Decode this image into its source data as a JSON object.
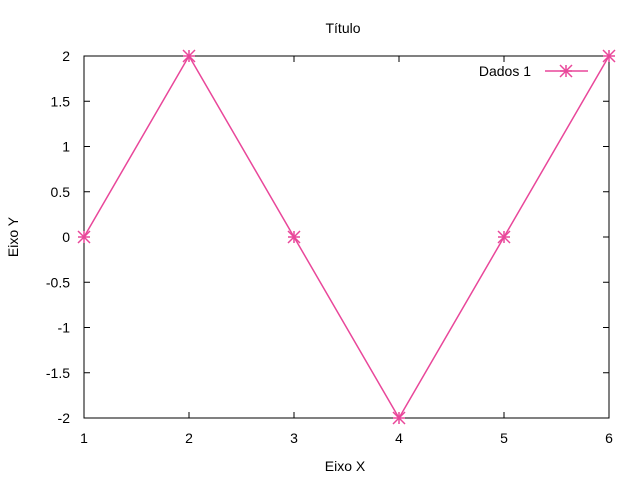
{
  "chart_data": {
    "type": "line",
    "title": "Título",
    "xlabel": "Eixo X",
    "ylabel": "Eixo Y",
    "xlim": [
      1,
      6
    ],
    "ylim": [
      -2,
      2
    ],
    "x_ticks": [
      1,
      2,
      3,
      4,
      5,
      6
    ],
    "x_tick_labels": [
      "1",
      "2",
      "3",
      "4",
      "5",
      "6"
    ],
    "y_ticks": [
      -2,
      -1.5,
      -1,
      -0.5,
      0,
      0.5,
      1,
      1.5,
      2
    ],
    "y_tick_labels": [
      "-2",
      "-1.5",
      "-1",
      "-0.5",
      "0",
      "0.5",
      "1",
      "1.5",
      "2"
    ],
    "grid": false,
    "legend_position": "top-right",
    "series": [
      {
        "name": "Dados 1",
        "color": "#e9479a",
        "marker": "asterisk",
        "x": [
          1,
          2,
          3,
          4,
          5,
          6
        ],
        "y": [
          0,
          2,
          0,
          -2,
          0,
          2
        ]
      }
    ]
  }
}
